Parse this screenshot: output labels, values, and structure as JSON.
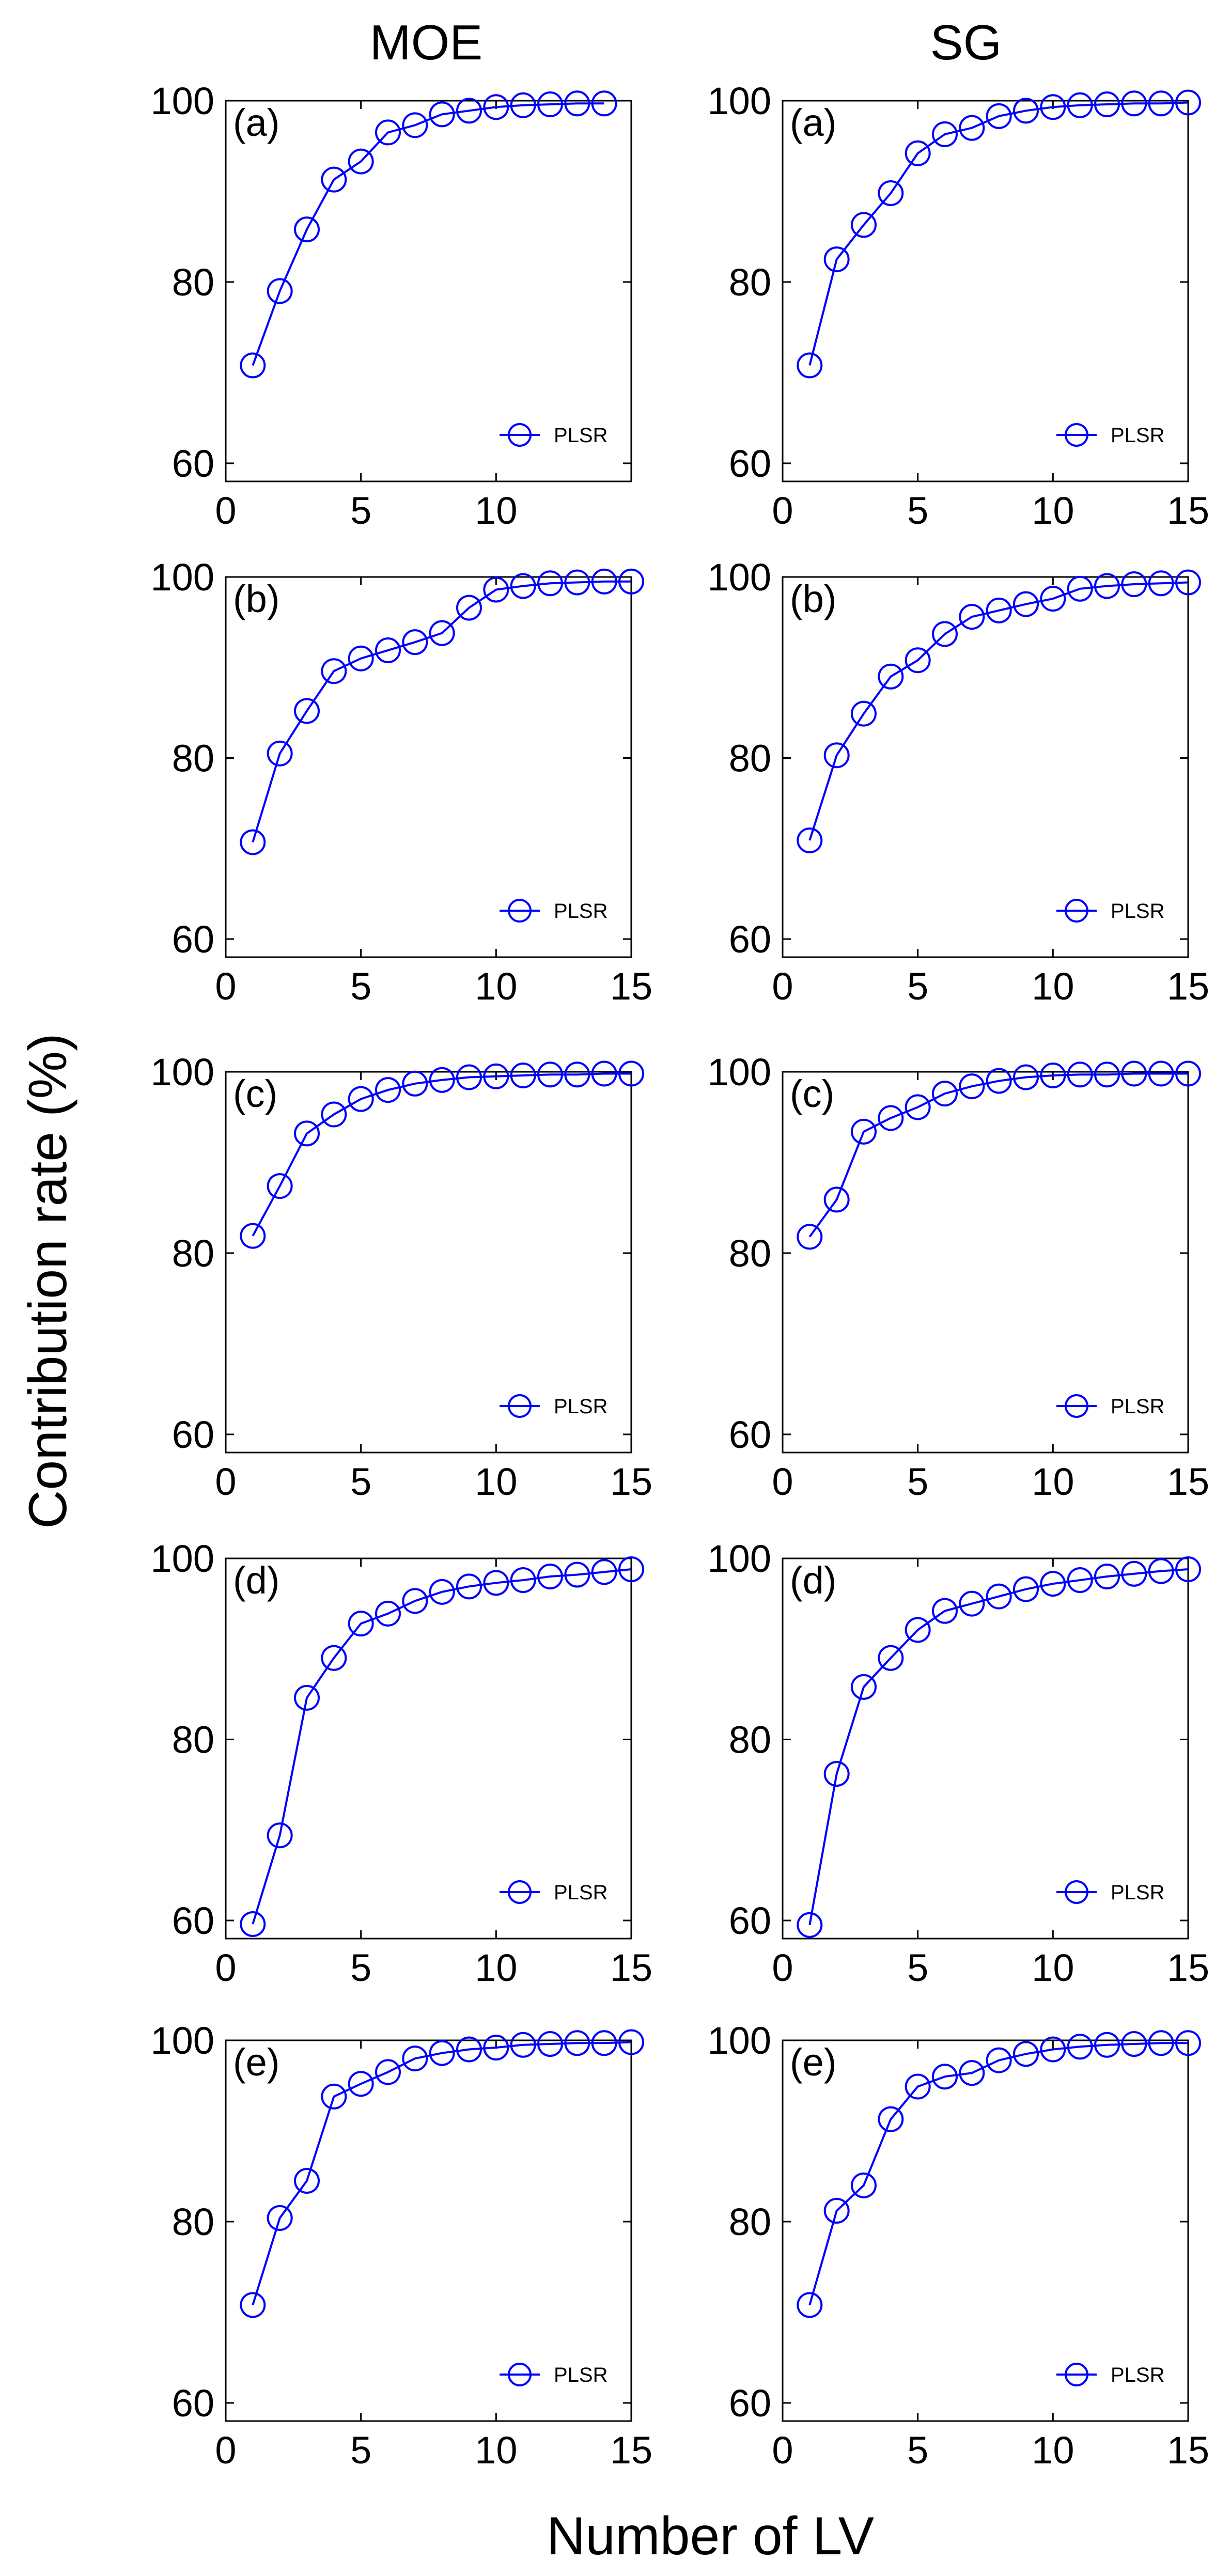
{
  "figure": {
    "column_titles": [
      "MOE",
      "SG"
    ],
    "ylabel": "Contribution rate (%)",
    "xlabel": "Number of LV",
    "legend_label": "PLSR",
    "line_color": "#0000ff"
  },
  "chart_data": [
    {
      "type": "line",
      "column": "MOE",
      "panel": "(a)",
      "x": [
        1,
        2,
        3,
        4,
        5,
        6,
        7,
        8,
        9,
        10,
        11,
        12,
        13,
        14
      ],
      "series": [
        {
          "name": "PLSR",
          "values": [
            70.8,
            79.0,
            85.8,
            91.3,
            93.3,
            96.5,
            97.3,
            98.5,
            98.9,
            99.3,
            99.5,
            99.6,
            99.7,
            99.7
          ]
        }
      ],
      "xlim": [
        0,
        15
      ],
      "ylim": [
        58,
        100
      ],
      "xticks": [
        0,
        5,
        10
      ],
      "yticks": [
        60,
        80,
        100
      ]
    },
    {
      "type": "line",
      "column": "SG",
      "panel": "(a)",
      "x": [
        1,
        2,
        3,
        4,
        5,
        6,
        7,
        8,
        9,
        10,
        11,
        12,
        13,
        14,
        15
      ],
      "series": [
        {
          "name": "PLSR",
          "values": [
            70.8,
            82.5,
            86.3,
            89.8,
            94.2,
            96.3,
            97.0,
            98.3,
            98.9,
            99.3,
            99.5,
            99.6,
            99.7,
            99.7,
            99.8
          ]
        }
      ],
      "xlim": [
        0,
        15
      ],
      "ylim": [
        58,
        100
      ],
      "xticks": [
        0,
        5,
        10,
        15
      ],
      "yticks": [
        60,
        80,
        100
      ]
    },
    {
      "type": "line",
      "column": "MOE",
      "panel": "(b)",
      "x": [
        1,
        2,
        3,
        4,
        5,
        6,
        7,
        8,
        9,
        10,
        11,
        12,
        13,
        14,
        15
      ],
      "series": [
        {
          "name": "PLSR",
          "values": [
            70.7,
            80.5,
            85.2,
            89.6,
            91.0,
            91.9,
            92.8,
            93.8,
            96.6,
            98.6,
            99.0,
            99.3,
            99.4,
            99.5,
            99.5
          ]
        }
      ],
      "xlim": [
        0,
        15
      ],
      "ylim": [
        58,
        100
      ],
      "xticks": [
        0,
        5,
        10,
        15
      ],
      "yticks": [
        60,
        80,
        100
      ]
    },
    {
      "type": "line",
      "column": "SG",
      "panel": "(b)",
      "x": [
        1,
        2,
        3,
        4,
        5,
        6,
        7,
        8,
        9,
        10,
        11,
        12,
        13,
        14,
        15
      ],
      "series": [
        {
          "name": "PLSR",
          "values": [
            70.9,
            80.3,
            84.9,
            89.0,
            90.8,
            93.7,
            95.6,
            96.3,
            97.0,
            97.6,
            98.7,
            99.0,
            99.2,
            99.3,
            99.4
          ]
        }
      ],
      "xlim": [
        0,
        15
      ],
      "ylim": [
        58,
        100
      ],
      "xticks": [
        0,
        5,
        10,
        15
      ],
      "yticks": [
        60,
        80,
        100
      ]
    },
    {
      "type": "line",
      "column": "MOE",
      "panel": "(c)",
      "x": [
        1,
        2,
        3,
        4,
        5,
        6,
        7,
        8,
        9,
        10,
        11,
        12,
        13,
        14,
        15
      ],
      "series": [
        {
          "name": "PLSR",
          "values": [
            81.9,
            87.4,
            93.2,
            95.3,
            97.0,
            98.0,
            98.7,
            99.1,
            99.4,
            99.5,
            99.6,
            99.7,
            99.7,
            99.8,
            99.8
          ]
        }
      ],
      "xlim": [
        0,
        15
      ],
      "ylim": [
        58,
        100
      ],
      "xticks": [
        0,
        5,
        10,
        15
      ],
      "yticks": [
        60,
        80,
        100
      ]
    },
    {
      "type": "line",
      "column": "SG",
      "panel": "(c)",
      "x": [
        1,
        2,
        3,
        4,
        5,
        6,
        7,
        8,
        9,
        10,
        11,
        12,
        13,
        14,
        15
      ],
      "series": [
        {
          "name": "PLSR",
          "values": [
            81.8,
            85.9,
            93.4,
            94.9,
            96.1,
            97.6,
            98.4,
            99.0,
            99.4,
            99.6,
            99.7,
            99.7,
            99.8,
            99.8,
            99.8
          ]
        }
      ],
      "xlim": [
        0,
        15
      ],
      "ylim": [
        58,
        100
      ],
      "xticks": [
        0,
        5,
        10,
        15
      ],
      "yticks": [
        60,
        80,
        100
      ]
    },
    {
      "type": "line",
      "column": "MOE",
      "panel": "(d)",
      "x": [
        1,
        2,
        3,
        4,
        5,
        6,
        7,
        8,
        9,
        10,
        11,
        12,
        13,
        14,
        15
      ],
      "series": [
        {
          "name": "PLSR",
          "values": [
            59.6,
            69.4,
            84.6,
            89.0,
            92.8,
            93.9,
            95.3,
            96.3,
            96.9,
            97.3,
            97.6,
            98.0,
            98.2,
            98.5,
            98.8
          ]
        }
      ],
      "xlim": [
        0,
        15
      ],
      "ylim": [
        58,
        100
      ],
      "xticks": [
        0,
        5,
        10,
        15
      ],
      "yticks": [
        60,
        80,
        100
      ]
    },
    {
      "type": "line",
      "column": "SG",
      "panel": "(d)",
      "x": [
        1,
        2,
        3,
        4,
        5,
        6,
        7,
        8,
        9,
        10,
        11,
        12,
        13,
        14,
        15
      ],
      "series": [
        {
          "name": "PLSR",
          "values": [
            59.5,
            76.2,
            85.8,
            89.0,
            92.1,
            94.2,
            95.0,
            95.8,
            96.6,
            97.2,
            97.6,
            98.0,
            98.3,
            98.6,
            98.8
          ]
        }
      ],
      "xlim": [
        0,
        15
      ],
      "ylim": [
        58,
        100
      ],
      "xticks": [
        0,
        5,
        10,
        15
      ],
      "yticks": [
        60,
        80,
        100
      ]
    },
    {
      "type": "line",
      "column": "MOE",
      "panel": "(e)",
      "x": [
        1,
        2,
        3,
        4,
        5,
        6,
        7,
        8,
        9,
        10,
        11,
        12,
        13,
        14,
        15
      ],
      "series": [
        {
          "name": "PLSR",
          "values": [
            70.8,
            80.4,
            84.5,
            93.8,
            95.2,
            96.5,
            98.0,
            98.6,
            99.0,
            99.2,
            99.5,
            99.6,
            99.7,
            99.7,
            99.8
          ]
        }
      ],
      "xlim": [
        0,
        15
      ],
      "ylim": [
        58,
        100
      ],
      "xticks": [
        0,
        5,
        10,
        15
      ],
      "yticks": [
        60,
        80,
        100
      ]
    },
    {
      "type": "line",
      "column": "SG",
      "panel": "(e)",
      "x": [
        1,
        2,
        3,
        4,
        5,
        6,
        7,
        8,
        9,
        10,
        11,
        12,
        13,
        14,
        15
      ],
      "series": [
        {
          "name": "PLSR",
          "values": [
            70.8,
            81.2,
            84.0,
            91.3,
            94.9,
            96.0,
            96.4,
            97.8,
            98.5,
            99.0,
            99.3,
            99.5,
            99.6,
            99.7,
            99.7
          ]
        }
      ],
      "xlim": [
        0,
        15
      ],
      "ylim": [
        58,
        100
      ],
      "xticks": [
        0,
        5,
        10,
        15
      ],
      "yticks": [
        60,
        80,
        100
      ]
    }
  ]
}
